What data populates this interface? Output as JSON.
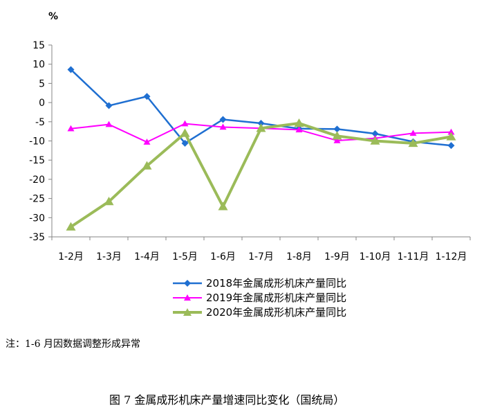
{
  "chart_data": {
    "type": "line",
    "ylabel": "%",
    "ylim": [
      -35,
      15
    ],
    "yticks": [
      15,
      10,
      5,
      0,
      -5,
      -10,
      -15,
      -20,
      -25,
      -30,
      -35
    ],
    "categories": [
      "1-2月",
      "1-3月",
      "1-4月",
      "1-5月",
      "1-6月",
      "1-7月",
      "1-8月",
      "1-9月",
      "1-10月",
      "1-11月",
      "1-12月"
    ],
    "series": [
      {
        "name": "2018年金属成形机床产量同比",
        "color": "#1f6fd1",
        "marker": "diamond",
        "values": [
          8.6,
          -0.8,
          1.6,
          -10.6,
          -4.4,
          -5.4,
          -6.8,
          -6.9,
          -8.1,
          -10.2,
          -11.2
        ]
      },
      {
        "name": "2019年金属成形机床产量同比",
        "color": "#ff00ff",
        "marker": "triangle",
        "values": [
          -6.8,
          -5.7,
          -10.3,
          -5.5,
          -6.4,
          -6.7,
          -7.1,
          -9.9,
          -9.3,
          -8.0,
          -7.7
        ]
      },
      {
        "name": "2020年金属成形机床产量同比",
        "color": "#9bbb59",
        "marker": "triangle",
        "values": [
          -32.4,
          -25.8,
          -16.5,
          -8.0,
          -27.1,
          -6.7,
          -5.4,
          -8.7,
          -10.0,
          -10.6,
          -8.9
        ]
      }
    ],
    "legend_position": "bottom",
    "grid": false
  },
  "note": "注：1-6 月因数据调整形成异常",
  "caption": "图 7  金属成形机床产量增速同比变化（国统局）"
}
